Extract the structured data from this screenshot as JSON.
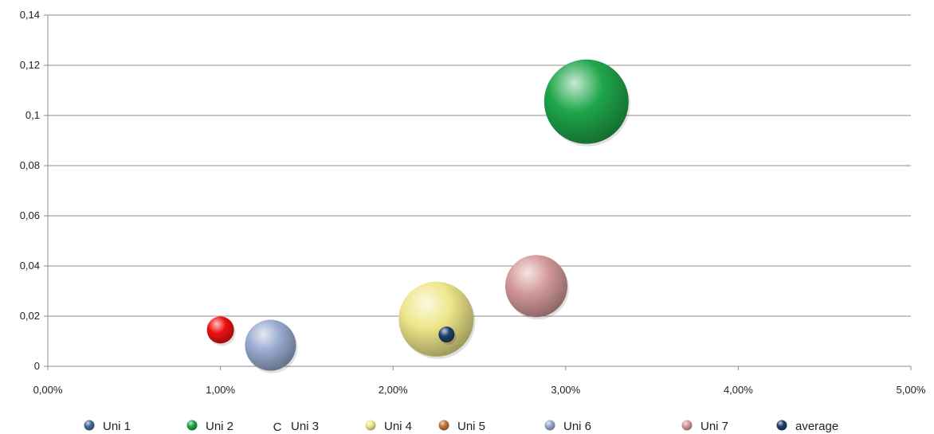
{
  "chart_data": {
    "type": "bubble",
    "title": "",
    "xlabel": "",
    "ylabel": "",
    "xlim": [
      0,
      0.05
    ],
    "ylim": [
      0,
      0.14
    ],
    "x_ticks": [
      {
        "value": 0,
        "label": "0,00%"
      },
      {
        "value": 0.01,
        "label": "1,00%"
      },
      {
        "value": 0.02,
        "label": "2,00%"
      },
      {
        "value": 0.03,
        "label": "3,00%"
      },
      {
        "value": 0.04,
        "label": "4,00%"
      },
      {
        "value": 0.05,
        "label": "5,00%"
      }
    ],
    "y_ticks": [
      {
        "value": 0,
        "label": "0"
      },
      {
        "value": 0.02,
        "label": "0,02"
      },
      {
        "value": 0.04,
        "label": "0,04"
      },
      {
        "value": 0.06,
        "label": "0,06"
      },
      {
        "value": 0.08,
        "label": "0,08"
      },
      {
        "value": 0.1,
        "label": "0,1"
      },
      {
        "value": 0.12,
        "label": "0,12"
      },
      {
        "value": 0.14,
        "label": "0,14"
      }
    ],
    "grid": "horizontal",
    "legend_position": "bottom",
    "series": [
      {
        "name": "Uni 1",
        "color": "#4a6a9a",
        "points": []
      },
      {
        "name": "Uni 2",
        "color": "#1fa64a",
        "points": [
          {
            "x": 0.0312,
            "y": 0.1055,
            "size": 53
          }
        ]
      },
      {
        "name": "Uni 3",
        "color": "#ee1111",
        "points": [
          {
            "x": 0.01,
            "y": 0.0145,
            "size": 17
          }
        ]
      },
      {
        "name": "Uni 4",
        "color": "#eee68a",
        "points": [
          {
            "x": 0.0225,
            "y": 0.0188,
            "size": 47
          }
        ]
      },
      {
        "name": "Uni 5",
        "color": "#c0763a",
        "points": []
      },
      {
        "name": "Uni 6",
        "color": "#98aad0",
        "points": [
          {
            "x": 0.0129,
            "y": 0.0084,
            "size": 32
          }
        ]
      },
      {
        "name": "Uni 7",
        "color": "#d49a9a",
        "points": [
          {
            "x": 0.0283,
            "y": 0.032,
            "size": 39
          }
        ]
      },
      {
        "name": "average",
        "color": "#1d3f6a",
        "points": [
          {
            "x": 0.0231,
            "y": 0.0127,
            "size": 10
          }
        ]
      }
    ],
    "legend": [
      {
        "label": "Uni 1",
        "marker": "sphere",
        "color": "#4a6a9a"
      },
      {
        "label": "Uni 2",
        "marker": "sphere",
        "color": "#1fa64a"
      },
      {
        "label": "Uni 3",
        "marker": "C",
        "color": "#222222"
      },
      {
        "label": "Uni 4",
        "marker": "sphere",
        "color": "#eee68a"
      },
      {
        "label": "Uni 5",
        "marker": "sphere",
        "color": "#c0763a"
      },
      {
        "label": "Uni 6",
        "marker": "sphere",
        "color": "#98aad0"
      },
      {
        "label": "Uni 7",
        "marker": "sphere",
        "color": "#d49a9a"
      },
      {
        "label": "average",
        "marker": "sphere",
        "color": "#1d3f6a"
      }
    ]
  }
}
